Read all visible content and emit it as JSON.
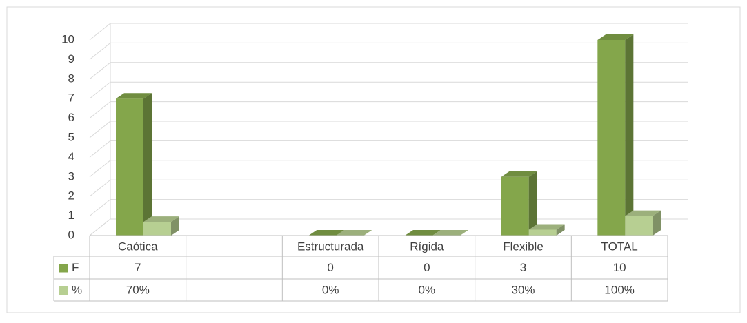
{
  "chart_data": {
    "type": "bar3d",
    "categories": [
      "Caótica",
      null,
      "Estructurada",
      "Rígida",
      "Flexible",
      "TOTAL"
    ],
    "series": [
      {
        "name": "F",
        "color": "#84a64b",
        "values": [
          7,
          null,
          0,
          0,
          3,
          10
        ]
      },
      {
        "name": "%",
        "color": "#b7cf92",
        "values": [
          0.7,
          null,
          0,
          0,
          0.3,
          1
        ],
        "value_labels": [
          "70%",
          null,
          "0%",
          "0%",
          "30%",
          "100%"
        ]
      }
    ],
    "ylim": [
      0,
      10
    ],
    "yticks": [
      0,
      1,
      2,
      3,
      4,
      5,
      6,
      7,
      8,
      9,
      10
    ],
    "grid": true,
    "data_table": true
  }
}
